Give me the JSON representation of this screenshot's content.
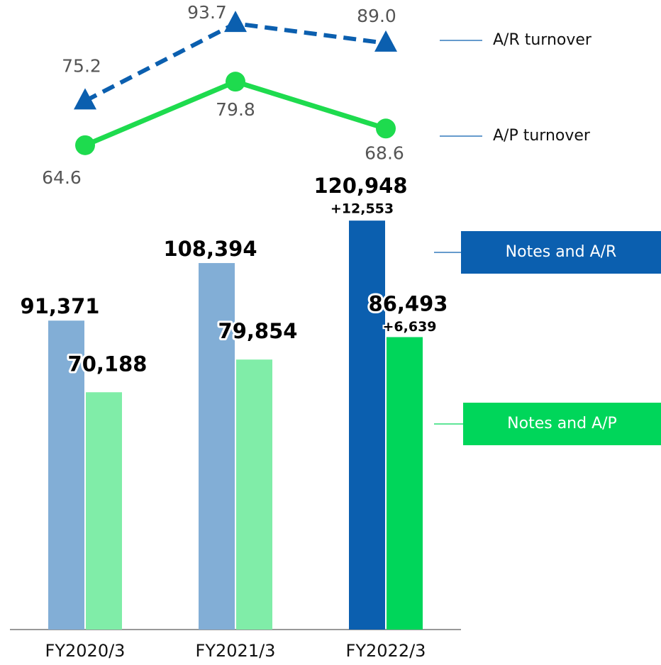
{
  "chart_data": {
    "type": "bar",
    "categories": [
      "FY2020/3",
      "FY2021/3",
      "FY2022/3"
    ],
    "ylim": [
      0,
      130000
    ],
    "y2lim": [
      60,
      100
    ],
    "series": [
      {
        "name": "Notes and A/R",
        "type": "bar",
        "color": "#0B5FAF",
        "colors": [
          "#82AED6",
          "#82AED6",
          "#0B5FAF"
        ],
        "values": [
          91371,
          108394,
          120948
        ],
        "value_labels": [
          "91,371",
          "108,394",
          "120,948"
        ]
      },
      {
        "name": "Notes and A/P",
        "type": "bar",
        "color": "#00D65A",
        "colors": [
          "#80EDA8",
          "#80EDA8",
          "#00D65A"
        ],
        "values": [
          70188,
          79854,
          86493
        ],
        "value_labels": [
          "70,188",
          "79,854",
          "86,493"
        ]
      },
      {
        "name": "A/R turnover",
        "type": "line",
        "axis": "y2",
        "color": "#0B5FAF",
        "dashed": true,
        "marker": "triangle",
        "values": [
          75.2,
          93.7,
          89.0
        ],
        "value_labels": [
          "75.2",
          "93.7",
          "89.0"
        ]
      },
      {
        "name": "A/P turnover",
        "type": "line",
        "axis": "y2",
        "color": "#1EDB4E",
        "dashed": false,
        "marker": "circle",
        "values": [
          64.6,
          79.8,
          68.6
        ]
      }
    ],
    "annotations": [
      {
        "series": 0,
        "index": 2,
        "text": "+12,553"
      },
      {
        "series": 1,
        "index": 2,
        "text": "+6,639"
      }
    ]
  }
}
